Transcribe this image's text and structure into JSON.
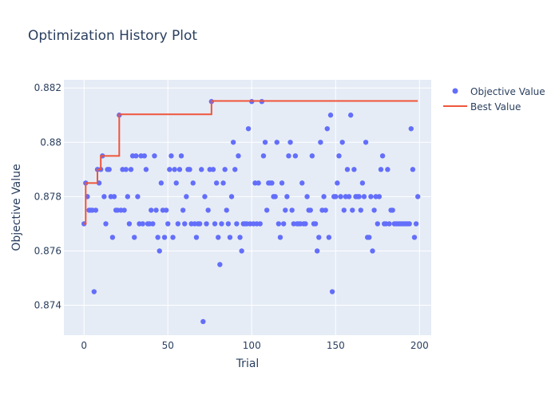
{
  "chart_data": {
    "type": "scatter",
    "title": "Optimization History Plot",
    "xlabel": "Trial",
    "ylabel": "Objective Value",
    "xlim": [
      -12,
      207
    ],
    "ylim": [
      0.8729,
      0.8823
    ],
    "x_ticks": [
      0,
      50,
      100,
      150,
      200
    ],
    "x_tick_labels": [
      "0",
      "50",
      "100",
      "150",
      "200"
    ],
    "y_ticks": [
      0.874,
      0.876,
      0.878,
      0.88,
      0.882
    ],
    "y_tick_labels": [
      "0.874",
      "0.876",
      "0.878",
      "0.88",
      "0.882"
    ],
    "grid": true,
    "legend_position": "top-right",
    "colors": {
      "plot_bg": "#e5ecf6",
      "grid": "#ffffff",
      "text": "#2a3f5f",
      "objective": "#636efa",
      "best": "#ef553b"
    },
    "series": [
      {
        "name": "Objective Value",
        "type": "scatter",
        "x": [
          0,
          1,
          2,
          3,
          4,
          5,
          6,
          7,
          8,
          9,
          10,
          11,
          12,
          13,
          14,
          15,
          16,
          17,
          18,
          19,
          20,
          21,
          22,
          23,
          24,
          25,
          26,
          27,
          28,
          29,
          30,
          31,
          32,
          33,
          34,
          35,
          36,
          37,
          38,
          39,
          40,
          41,
          42,
          43,
          44,
          45,
          46,
          47,
          48,
          49,
          50,
          51,
          52,
          53,
          54,
          55,
          56,
          57,
          58,
          59,
          60,
          61,
          62,
          63,
          64,
          65,
          66,
          67,
          68,
          69,
          70,
          71,
          72,
          73,
          74,
          75,
          76,
          77,
          78,
          79,
          80,
          81,
          82,
          83,
          84,
          85,
          86,
          87,
          88,
          89,
          90,
          91,
          92,
          93,
          94,
          95,
          96,
          97,
          98,
          99,
          100,
          101,
          102,
          103,
          104,
          105,
          106,
          107,
          108,
          109,
          110,
          111,
          112,
          113,
          114,
          115,
          116,
          117,
          118,
          119,
          120,
          121,
          122,
          123,
          124,
          125,
          126,
          127,
          128,
          129,
          130,
          131,
          132,
          133,
          134,
          135,
          136,
          137,
          138,
          139,
          140,
          141,
          142,
          143,
          144,
          145,
          146,
          147,
          148,
          149,
          150,
          151,
          152,
          153,
          154,
          155,
          156,
          157,
          158,
          159,
          160,
          161,
          162,
          163,
          164,
          165,
          166,
          167,
          168,
          169,
          170,
          171,
          172,
          173,
          174,
          175,
          176,
          177,
          178,
          179,
          180,
          181,
          182,
          183,
          184,
          185,
          186,
          187,
          188,
          189,
          190,
          191,
          192,
          193,
          194,
          195,
          196,
          197,
          198,
          199
        ],
        "y": [
          0.877,
          0.8785,
          0.878,
          0.8775,
          0.8775,
          0.8775,
          0.8745,
          0.8775,
          0.879,
          0.8785,
          0.879,
          0.8795,
          0.878,
          0.877,
          0.879,
          0.879,
          0.878,
          0.8765,
          0.878,
          0.8775,
          0.8775,
          0.881,
          0.8775,
          0.879,
          0.8775,
          0.879,
          0.878,
          0.877,
          0.879,
          0.8795,
          0.8765,
          0.8795,
          0.878,
          0.877,
          0.8795,
          0.877,
          0.8795,
          0.879,
          0.877,
          0.877,
          0.8775,
          0.877,
          0.8795,
          0.8775,
          0.8765,
          0.876,
          0.8785,
          0.8775,
          0.8765,
          0.8775,
          0.877,
          0.879,
          0.8795,
          0.8765,
          0.879,
          0.8785,
          0.877,
          0.879,
          0.8795,
          0.8775,
          0.877,
          0.878,
          0.879,
          0.879,
          0.877,
          0.8785,
          0.877,
          0.8765,
          0.877,
          0.877,
          0.879,
          0.8734,
          0.878,
          0.877,
          0.8775,
          0.879,
          0.8815,
          0.879,
          0.877,
          0.8785,
          0.8765,
          0.8755,
          0.877,
          0.8785,
          0.879,
          0.8775,
          0.877,
          0.8765,
          0.878,
          0.88,
          0.879,
          0.877,
          0.8795,
          0.8765,
          0.876,
          0.877,
          0.877,
          0.877,
          0.8805,
          0.877,
          0.8815,
          0.877,
          0.8785,
          0.877,
          0.8785,
          0.877,
          0.8815,
          0.8795,
          0.88,
          0.8775,
          0.8785,
          0.8785,
          0.8785,
          0.878,
          0.878,
          0.88,
          0.877,
          0.8765,
          0.8785,
          0.877,
          0.8775,
          0.878,
          0.8795,
          0.88,
          0.8775,
          0.877,
          0.8795,
          0.877,
          0.877,
          0.877,
          0.8785,
          0.877,
          0.877,
          0.878,
          0.8775,
          0.8775,
          0.8795,
          0.877,
          0.877,
          0.876,
          0.8765,
          0.88,
          0.8775,
          0.878,
          0.8775,
          0.8805,
          0.8765,
          0.881,
          0.8745,
          0.878,
          0.878,
          0.8785,
          0.8795,
          0.878,
          0.88,
          0.8775,
          0.878,
          0.879,
          0.878,
          0.881,
          0.8775,
          0.879,
          0.878,
          0.878,
          0.878,
          0.8775,
          0.8785,
          0.878,
          0.88,
          0.8765,
          0.8765,
          0.878,
          0.876,
          0.8775,
          0.878,
          0.877,
          0.878,
          0.879,
          0.8795,
          0.877,
          0.877,
          0.879,
          0.877,
          0.8775,
          0.8775,
          0.877,
          0.877,
          0.877,
          0.877,
          0.877,
          0.877,
          0.877,
          0.877,
          0.877,
          0.877,
          0.8805,
          0.879,
          0.8765,
          0.877,
          0.878
        ]
      },
      {
        "name": "Best Value",
        "type": "line",
        "shape": "step",
        "x": [
          0,
          1,
          8,
          10,
          20,
          21,
          75,
          76,
          199
        ],
        "y": [
          0.877,
          0.8785,
          0.879,
          0.8795,
          0.8795,
          0.88103,
          0.88103,
          0.88152,
          0.88152
        ]
      }
    ]
  }
}
